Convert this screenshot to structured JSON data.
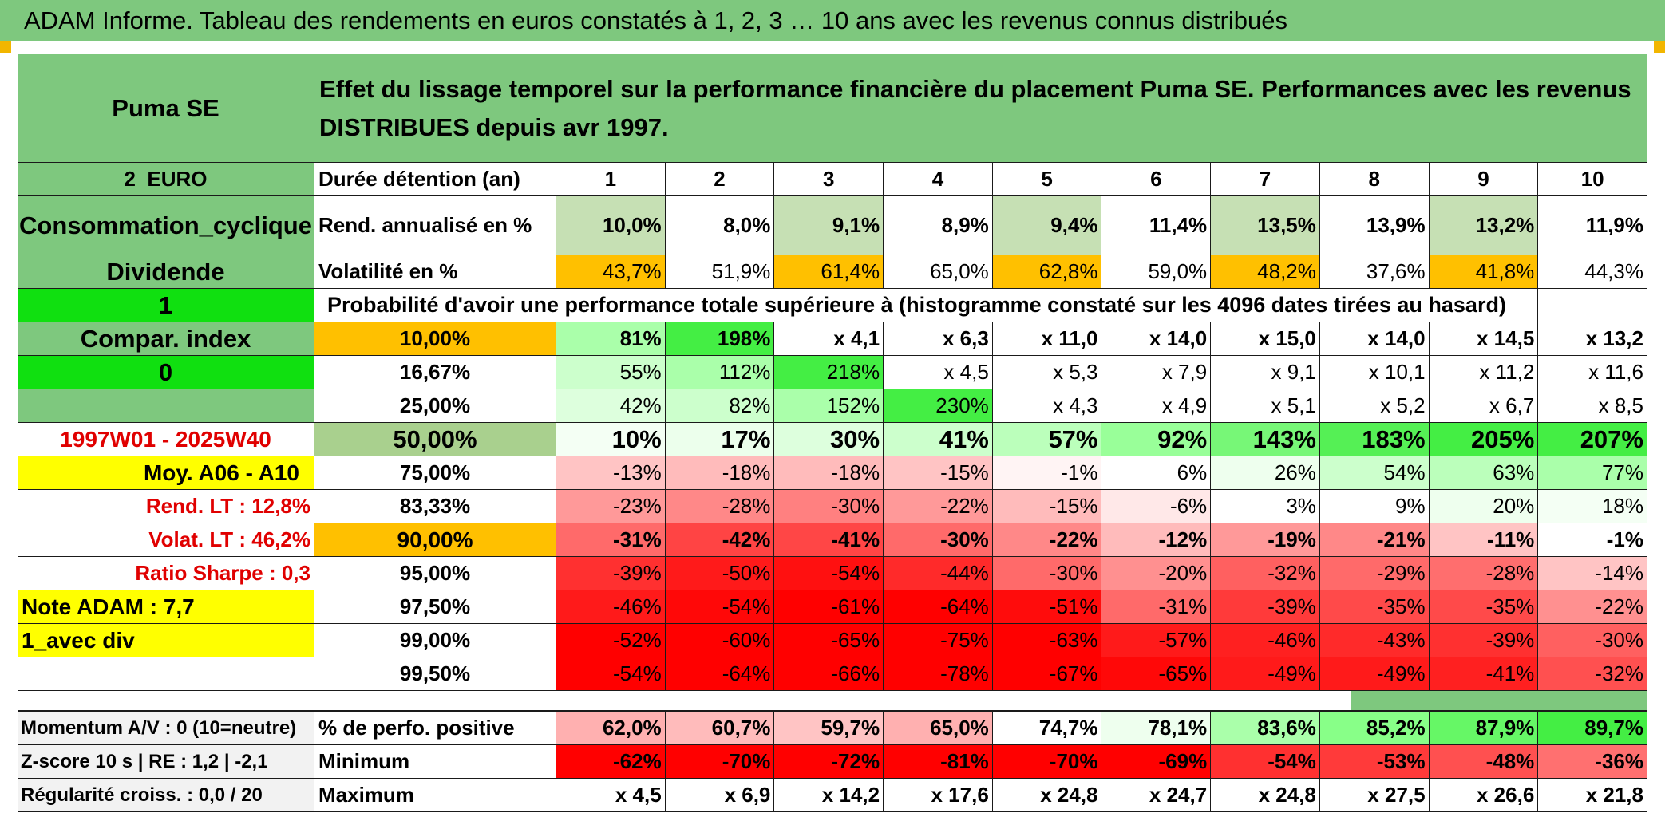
{
  "banner": "ADAM Informe. Tableau des rendements en euros constatés à 1, 2, 3 … 10 ans avec les revenus connus distribués",
  "left": {
    "name": "Puma SE",
    "currency": "2_EURO",
    "sector": "Consommation_cyclique",
    "dividend": "Dividende",
    "flag1": "1",
    "compar": "Compar. index",
    "flag0": "0",
    "period": "1997W01 - 2025W40",
    "avg": "Moy. A06 - A10",
    "rend_lt": "Rend. LT :   12,8%",
    "volat_lt": "Volat. LT :   46,2%",
    "sharpe": "Ratio Sharpe :   0,3",
    "note": "Note ADAM : 7,7",
    "with_div": "1_avec div",
    "momentum": "Momentum A/V : 0 (10=neutre)",
    "zscore": "Z-score 10 s | RE : 1,2 | -2,1",
    "regularite": "Régularité croiss. : 0,0 / 20"
  },
  "table_title": "Effet du lissage temporel sur la performance financière du placement Puma SE. Performances avec les revenus DISTRIBUES depuis avr 1997.",
  "row_labels": {
    "duration": "Durée détention (an)",
    "rend": "Rend. annualisé en %",
    "vol": "Volatilité en %",
    "prob": "Probabilité d'avoir une performance totale supérieure à (histogramme constaté sur les 4096 dates tirées au hasard)",
    "pct_pos": "% de perfo. positive",
    "min": "Minimum",
    "max": "Maximum"
  },
  "years": [
    "1",
    "2",
    "3",
    "4",
    "5",
    "6",
    "7",
    "8",
    "9",
    "10"
  ],
  "rend": [
    "10,0%",
    "8,0%",
    "9,1%",
    "8,9%",
    "9,4%",
    "11,4%",
    "13,5%",
    "13,9%",
    "13,2%",
    "11,9%"
  ],
  "vol": [
    "43,7%",
    "51,9%",
    "61,4%",
    "65,0%",
    "62,8%",
    "59,0%",
    "48,2%",
    "37,6%",
    "41,8%",
    "44,3%"
  ],
  "percentiles": [
    {
      "p": "10,00%",
      "v": [
        "81%",
        "198%",
        "x 4,1",
        "x 6,3",
        "x 11,0",
        "x 14,0",
        "x 15,0",
        "x 14,0",
        "x 14,5",
        "x 13,2"
      ]
    },
    {
      "p": "16,67%",
      "v": [
        "55%",
        "112%",
        "218%",
        "x 4,5",
        "x 5,3",
        "x 7,9",
        "x 9,1",
        "x 10,1",
        "x 11,2",
        "x 11,6"
      ]
    },
    {
      "p": "25,00%",
      "v": [
        "42%",
        "82%",
        "152%",
        "230%",
        "x 4,3",
        "x 4,9",
        "x 5,1",
        "x 5,2",
        "x 6,7",
        "x 8,5"
      ]
    },
    {
      "p": "50,00%",
      "v": [
        "10%",
        "17%",
        "30%",
        "41%",
        "57%",
        "92%",
        "143%",
        "183%",
        "205%",
        "207%"
      ]
    },
    {
      "p": "75,00%",
      "v": [
        "-13%",
        "-18%",
        "-18%",
        "-15%",
        "-1%",
        "6%",
        "26%",
        "54%",
        "63%",
        "77%"
      ]
    },
    {
      "p": "83,33%",
      "v": [
        "-23%",
        "-28%",
        "-30%",
        "-22%",
        "-15%",
        "-6%",
        "3%",
        "9%",
        "20%",
        "18%"
      ]
    },
    {
      "p": "90,00%",
      "v": [
        "-31%",
        "-42%",
        "-41%",
        "-30%",
        "-22%",
        "-12%",
        "-19%",
        "-21%",
        "-11%",
        "-1%"
      ]
    },
    {
      "p": "95,00%",
      "v": [
        "-39%",
        "-50%",
        "-54%",
        "-44%",
        "-30%",
        "-20%",
        "-32%",
        "-29%",
        "-28%",
        "-14%"
      ]
    },
    {
      "p": "97,50%",
      "v": [
        "-46%",
        "-54%",
        "-61%",
        "-64%",
        "-51%",
        "-31%",
        "-39%",
        "-35%",
        "-35%",
        "-22%"
      ]
    },
    {
      "p": "99,00%",
      "v": [
        "-52%",
        "-60%",
        "-65%",
        "-75%",
        "-63%",
        "-57%",
        "-46%",
        "-43%",
        "-39%",
        "-30%"
      ]
    },
    {
      "p": "99,50%",
      "v": [
        "-54%",
        "-64%",
        "-66%",
        "-78%",
        "-67%",
        "-65%",
        "-49%",
        "-49%",
        "-41%",
        "-32%"
      ]
    }
  ],
  "pct_pos": [
    "62,0%",
    "60,7%",
    "59,7%",
    "65,0%",
    "74,7%",
    "78,1%",
    "83,6%",
    "85,2%",
    "87,9%",
    "89,7%"
  ],
  "min": [
    "-62%",
    "-70%",
    "-72%",
    "-81%",
    "-70%",
    "-69%",
    "-54%",
    "-53%",
    "-48%",
    "-36%"
  ],
  "max": [
    "x 4,5",
    "x 6,9",
    "x 14,2",
    "x 17,6",
    "x 24,8",
    "x 24,7",
    "x 24,8",
    "x 27,5",
    "x 26,6",
    "x 21,8"
  ],
  "colors": {
    "header_green": "#7ec87e",
    "lime": "#10e010",
    "yellow": "#ffff00",
    "orange": "#ffc000",
    "red_text": "#e00000",
    "rend_cells": [
      "#c6e0b4",
      "#ffffff",
      "#c6e0b4",
      "#ffffff",
      "#c6e0b4",
      "#ffffff",
      "#c6e0b4",
      "#ffffff",
      "#c6e0b4",
      "#ffffff"
    ],
    "vol_cells": [
      "#ffc000",
      "#ffffff",
      "#ffc000",
      "#ffffff",
      "#ffc000",
      "#ffffff",
      "#ffc000",
      "#ffffff",
      "#ffc000",
      "#ffffff"
    ],
    "percentile_cells": [
      [
        "#aaffaa",
        "#44ee44",
        "#ffffff",
        "#ffffff",
        "#ffffff",
        "#ffffff",
        "#ffffff",
        "#ffffff",
        "#ffffff",
        "#ffffff"
      ],
      [
        "#ccffcc",
        "#aaffaa",
        "#44ee44",
        "#ffffff",
        "#ffffff",
        "#ffffff",
        "#ffffff",
        "#ffffff",
        "#ffffff",
        "#ffffff"
      ],
      [
        "#ddffdd",
        "#ccffcc",
        "#aaffaa",
        "#44ee44",
        "#ffffff",
        "#ffffff",
        "#ffffff",
        "#ffffff",
        "#ffffff",
        "#ffffff"
      ],
      [
        "#f4fff4",
        "#ecffec",
        "#ddffdd",
        "#ccffcc",
        "#bbffbb",
        "#99ff99",
        "#77f777",
        "#55f055",
        "#44ee44",
        "#44ee44"
      ],
      [
        "#ffc4c4",
        "#ffbbbb",
        "#ffbbbb",
        "#ffc4c4",
        "#fff4f4",
        "#ffffff",
        "#eeffee",
        "#ccffcc",
        "#bbffbb",
        "#aaffaa"
      ],
      [
        "#ff9999",
        "#ff8888",
        "#ff8080",
        "#ff9999",
        "#ffbbbb",
        "#ffe8e8",
        "#ffffff",
        "#ffffff",
        "#eeffee",
        "#f4fff4"
      ],
      [
        "#ff6a6a",
        "#ff4444",
        "#ff4646",
        "#ff6a6a",
        "#ff8888",
        "#ffbbbb",
        "#ff9999",
        "#ff8888",
        "#ffc4c4",
        "#ffffff"
      ],
      [
        "#ff3030",
        "#ff1a1a",
        "#ff1010",
        "#ff2a2a",
        "#ff6a6a",
        "#ff9090",
        "#ff6060",
        "#ff6a6a",
        "#ff6e6e",
        "#ffc4c4"
      ],
      [
        "#ff1a1a",
        "#ff0808",
        "#ff0000",
        "#ff0000",
        "#ff0c0c",
        "#ff6a6a",
        "#ff3a3a",
        "#ff4a4a",
        "#ff4a4a",
        "#ff9090"
      ],
      [
        "#ff0000",
        "#ff0000",
        "#ff0000",
        "#ff0000",
        "#ff0000",
        "#ff1a1a",
        "#ff2020",
        "#ff2a2a",
        "#ff3030",
        "#ff6060"
      ],
      [
        "#ff0000",
        "#ff0000",
        "#ff0000",
        "#ff0000",
        "#ff0000",
        "#ff0808",
        "#ff1a1a",
        "#ff1a1a",
        "#ff2020",
        "#ff5050"
      ]
    ],
    "pct_pos_cells": [
      "#ffb0b0",
      "#ffbbbb",
      "#ffc4c4",
      "#ffb0b0",
      "#ffffff",
      "#eeffee",
      "#aaffaa",
      "#88ff88",
      "#66f766",
      "#44ee44"
    ],
    "min_cells": [
      "#ff0000",
      "#ff0000",
      "#ff0000",
      "#ff0000",
      "#ff0000",
      "#ff0000",
      "#ff3030",
      "#ff3a3a",
      "#ff5050",
      "#ff7070"
    ],
    "max_cells": [
      "#ffffff",
      "#ffffff",
      "#ffffff",
      "#ffffff",
      "#ffffff",
      "#ffffff",
      "#ffffff",
      "#ffffff",
      "#ffffff",
      "#ffffff"
    ]
  }
}
